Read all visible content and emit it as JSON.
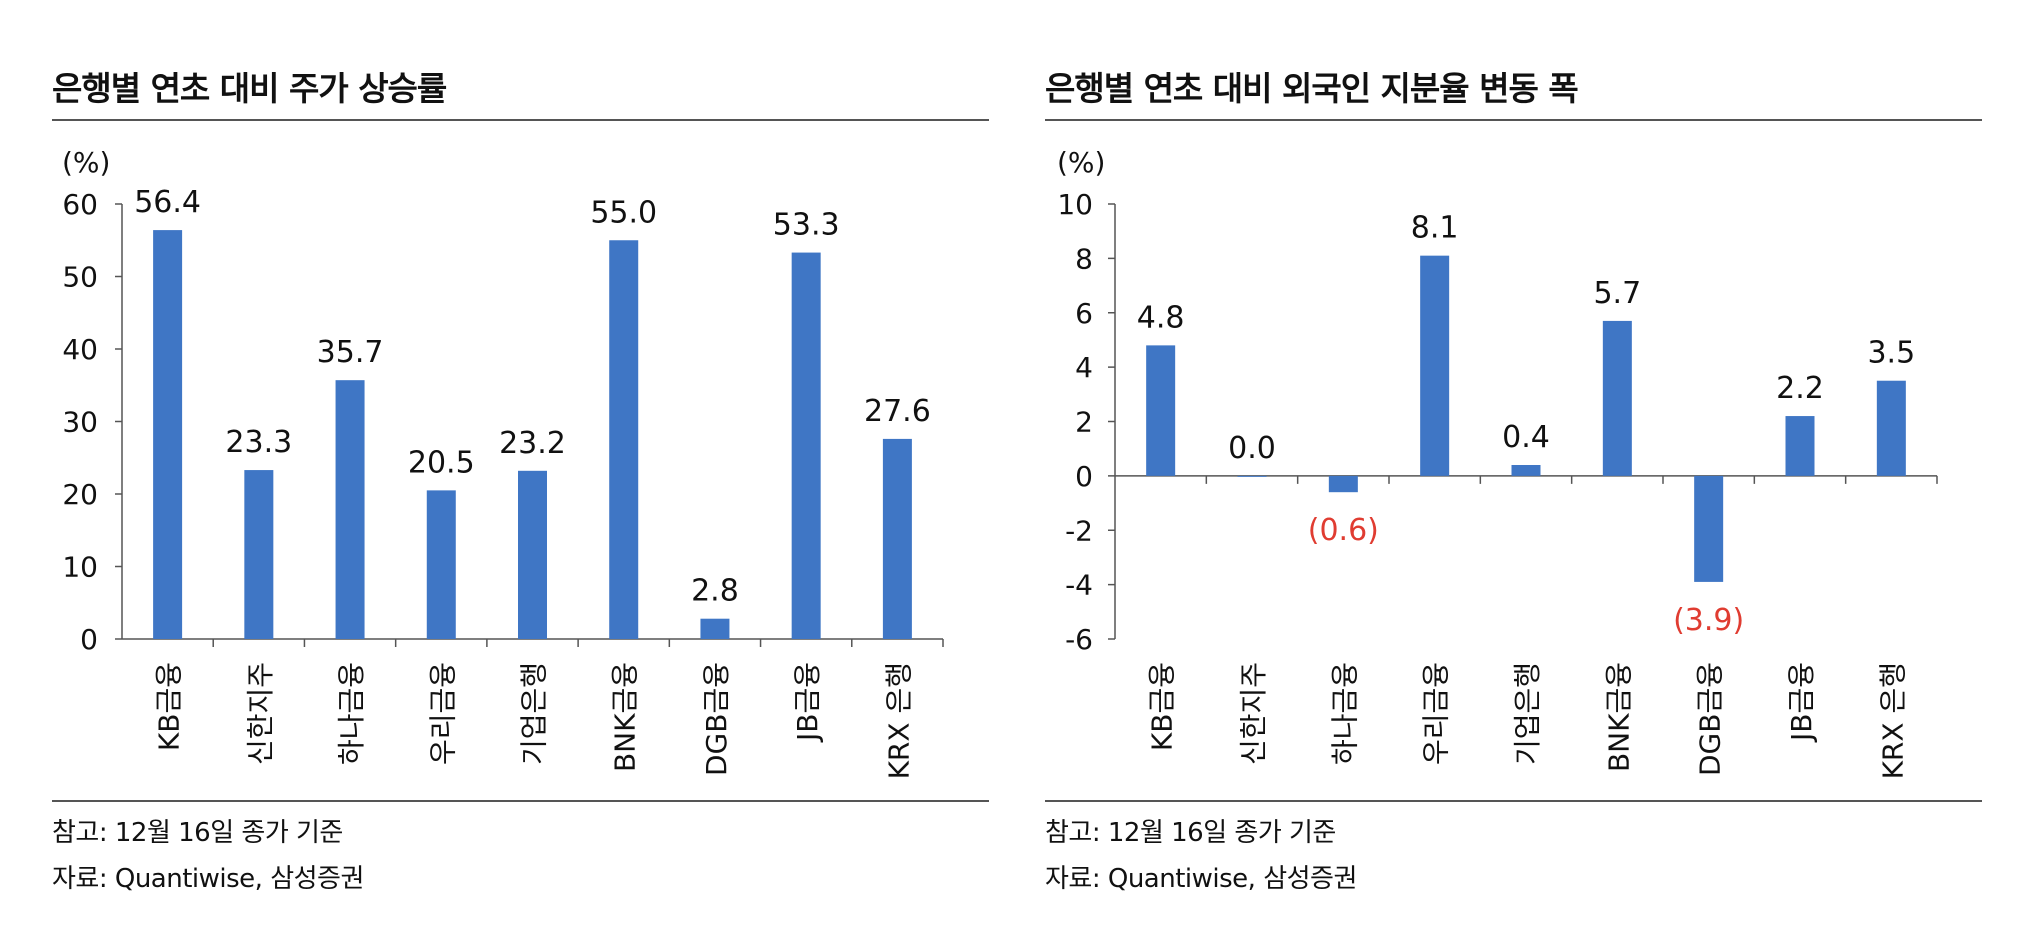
{
  "colors": {
    "bar": "#3f76c5",
    "negative_label": "#e03c31",
    "axis": "#555555"
  },
  "charts": [
    {
      "title": "은행별 연초 대비 주가 상승률",
      "notes": {
        "reference": "참고: 12월 16일 종가 기준",
        "source": "자료: Quantiwise, 삼성증권"
      }
    },
    {
      "title": "은행별 연초 대비 외국인 지분율 변동 폭",
      "notes": {
        "reference": "참고: 12월 16일 종가 기준",
        "source": "자료: Quantiwise, 삼성증권"
      }
    }
  ],
  "chart_data": [
    {
      "type": "bar",
      "title": "은행별 연초 대비 주가 상승률",
      "ylabel": "(%)",
      "categories": [
        "KB금융",
        "신한지주",
        "하나금융",
        "우리금융",
        "기업은행",
        "BNK금융",
        "DGB금융",
        "JB금융",
        "KRX 은행"
      ],
      "values": [
        56.4,
        23.3,
        35.7,
        20.5,
        23.2,
        55.0,
        2.8,
        53.3,
        27.6
      ],
      "labels": [
        "56.4",
        "23.3",
        "35.7",
        "20.5",
        "23.2",
        "55.0",
        "2.8",
        "53.3",
        "27.6"
      ],
      "ylim": [
        0,
        60
      ],
      "yticks": [
        "0",
        "10",
        "20",
        "30",
        "40",
        "50",
        "60"
      ],
      "grid": false
    },
    {
      "type": "bar",
      "title": "은행별 연초 대비 외국인 지분율 변동 폭",
      "ylabel": "(%)",
      "categories": [
        "KB금융",
        "신한지주",
        "하나금융",
        "우리금융",
        "기업은행",
        "BNK금융",
        "DGB금융",
        "JB금융",
        "KRX 은행"
      ],
      "values": [
        4.8,
        0.0,
        -0.6,
        8.1,
        0.4,
        5.7,
        -3.9,
        2.2,
        3.5
      ],
      "labels": [
        "4.8",
        "0.0",
        "(0.6)",
        "8.1",
        "0.4",
        "5.7",
        "(3.9)",
        "2.2",
        "3.5"
      ],
      "ylim": [
        -6,
        10
      ],
      "yticks": [
        "-6",
        "-4",
        "-2",
        "0",
        "2",
        "4",
        "6",
        "8",
        "10"
      ],
      "grid": false
    }
  ]
}
